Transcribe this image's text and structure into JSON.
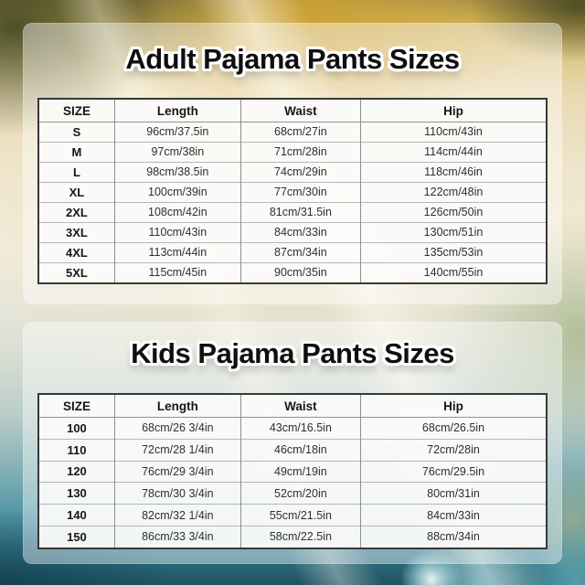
{
  "chart_data": [
    {
      "type": "table",
      "title": "Adult Pajama Pants Sizes",
      "columns": [
        "SIZE",
        "Length",
        "Waist",
        "Hip"
      ],
      "rows": [
        [
          "S",
          "96cm/37.5in",
          "68cm/27in",
          "110cm/43in"
        ],
        [
          "M",
          "97cm/38in",
          "71cm/28in",
          "114cm/44in"
        ],
        [
          "L",
          "98cm/38.5in",
          "74cm/29in",
          "118cm/46in"
        ],
        [
          "XL",
          "100cm/39in",
          "77cm/30in",
          "122cm/48in"
        ],
        [
          "2XL",
          "108cm/42in",
          "81cm/31.5in",
          "126cm/50in"
        ],
        [
          "3XL",
          "110cm/43in",
          "84cm/33in",
          "130cm/51in"
        ],
        [
          "4XL",
          "113cm/44in",
          "87cm/34in",
          "135cm/53in"
        ],
        [
          "5XL",
          "115cm/45in",
          "90cm/35in",
          "140cm/55in"
        ]
      ]
    },
    {
      "type": "table",
      "title": "Kids Pajama Pants Sizes",
      "columns": [
        "SIZE",
        "Length",
        "Waist",
        "Hip"
      ],
      "rows": [
        [
          "100",
          "68cm/26 3/4in",
          "43cm/16.5in",
          "68cm/26.5in"
        ],
        [
          "110",
          "72cm/28 1/4in",
          "46cm/18in",
          "72cm/28in"
        ],
        [
          "120",
          "76cm/29 3/4in",
          "49cm/19in",
          "76cm/29.5in"
        ],
        [
          "130",
          "78cm/30 3/4in",
          "52cm/20in",
          "80cm/31in"
        ],
        [
          "140",
          "82cm/32 1/4in",
          "55cm/21.5in",
          "84cm/33in"
        ],
        [
          "150",
          "86cm/33 3/4in",
          "58cm/22.5in",
          "88cm/34in"
        ]
      ]
    }
  ],
  "colors": {
    "title_text": "#0f0f0f",
    "title_outline": "#ffffff",
    "table_outer_border": "#383838",
    "table_inner_border": "#8f8f8f",
    "cell_background": "#fbfbfa",
    "panel_overlay": "rgba(255,255,255,0.42)",
    "background_gold": "#c2a34a",
    "background_cream": "#f2ecdd",
    "background_teal": "#2f7488"
  }
}
